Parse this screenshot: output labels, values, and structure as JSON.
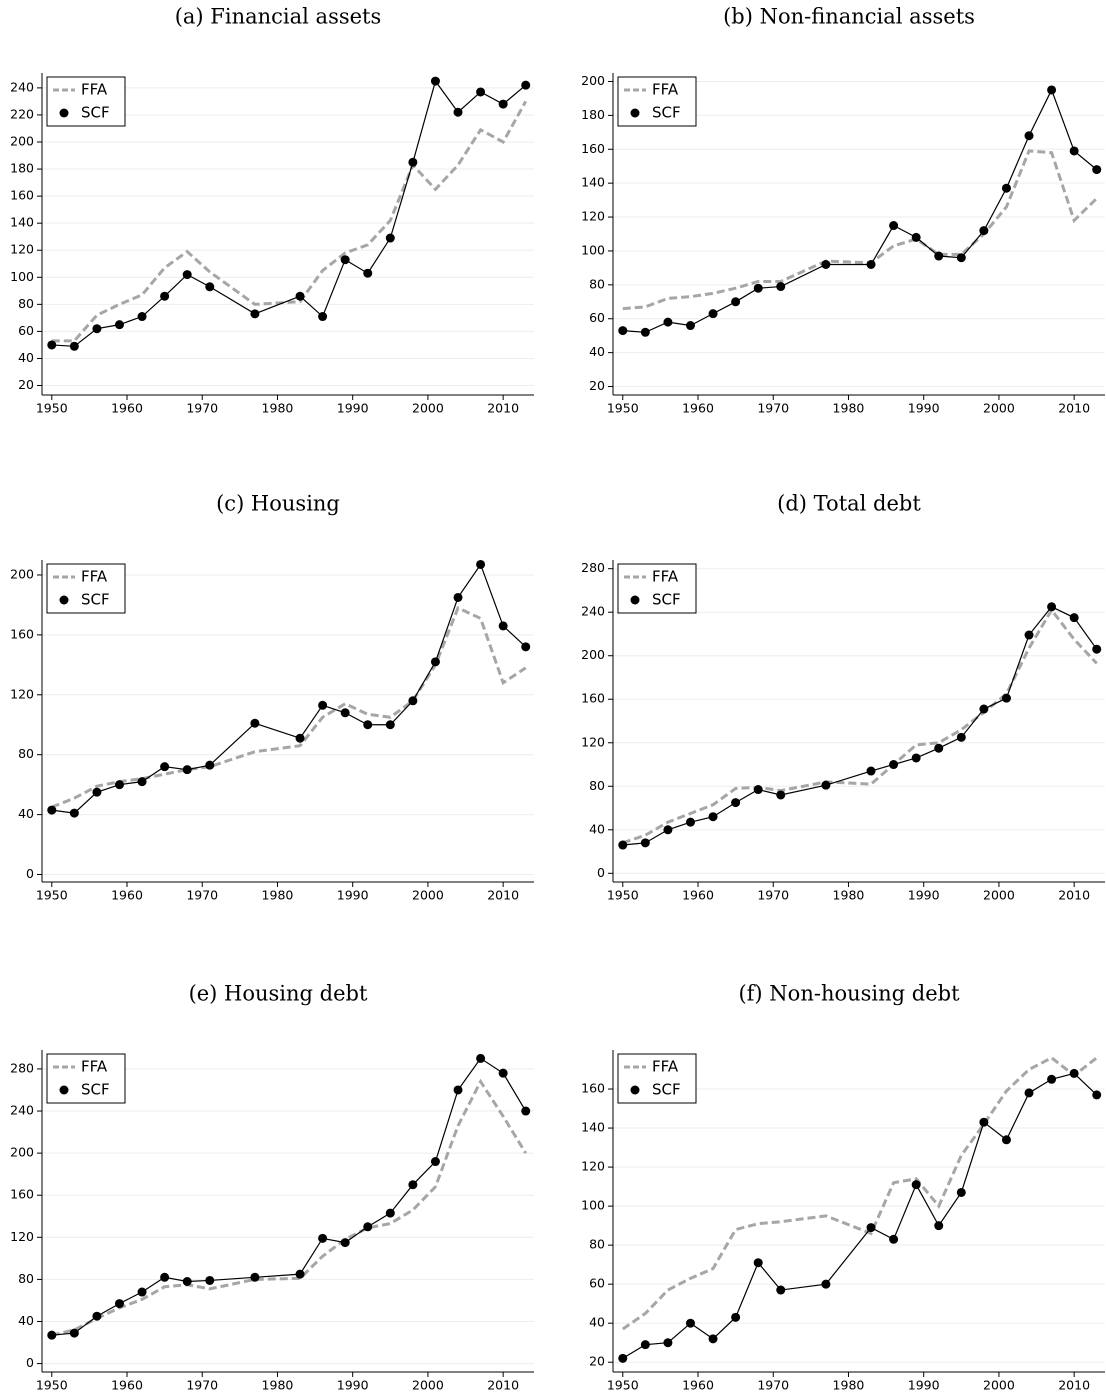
{
  "chart_data": [
    {
      "type": "line",
      "title": "(a) Financial assets",
      "x": [
        1950,
        1953,
        1956,
        1959,
        1962,
        1965,
        1968,
        1971,
        1977,
        1983,
        1986,
        1989,
        1992,
        1995,
        1998,
        2001,
        2004,
        2007,
        2010,
        2013
      ],
      "series": [
        {
          "name": "FFA",
          "color": "#a6a6a6",
          "style": "dashed",
          "markers": false,
          "values": [
            53,
            53,
            72,
            80,
            87,
            107,
            119,
            104,
            80,
            82,
            105,
            118,
            124,
            142,
            183,
            165,
            183,
            209,
            200,
            230
          ]
        },
        {
          "name": "SCF",
          "color": "#000000",
          "style": "solid",
          "markers": true,
          "values": [
            50,
            49,
            62,
            65,
            71,
            86,
            102,
            93,
            73,
            86,
            71,
            113,
            103,
            129,
            185,
            245,
            222,
            237,
            228,
            242
          ]
        }
      ],
      "xlim": [
        1948.7,
        2014.1
      ],
      "ylim": [
        13,
        251
      ],
      "xticks": [
        1950,
        1960,
        1970,
        1980,
        1990,
        2000,
        2010
      ],
      "yticks": [
        20,
        40,
        60,
        80,
        100,
        120,
        140,
        160,
        180,
        200,
        220,
        240
      ],
      "grid": true,
      "legend": "upper left"
    },
    {
      "type": "line",
      "title": "(b) Non-financial assets",
      "x": [
        1950,
        1953,
        1956,
        1959,
        1962,
        1965,
        1968,
        1971,
        1977,
        1983,
        1986,
        1989,
        1992,
        1995,
        1998,
        2001,
        2004,
        2007,
        2010,
        2013
      ],
      "series": [
        {
          "name": "FFA",
          "color": "#a6a6a6",
          "style": "dashed",
          "markers": false,
          "values": [
            66,
            67,
            72,
            73,
            75,
            78,
            82,
            82,
            94,
            93,
            103,
            107,
            98,
            98,
            110,
            126,
            159,
            158,
            118,
            131
          ]
        },
        {
          "name": "SCF",
          "color": "#000000",
          "style": "solid",
          "markers": true,
          "values": [
            53,
            52,
            58,
            56,
            63,
            70,
            78,
            79,
            92,
            92,
            115,
            108,
            97,
            96,
            112,
            137,
            168,
            195,
            159,
            148
          ]
        }
      ],
      "xlim": [
        1948.7,
        2014.1
      ],
      "ylim": [
        15,
        205
      ],
      "xticks": [
        1950,
        1960,
        1970,
        1980,
        1990,
        2000,
        2010
      ],
      "yticks": [
        20,
        40,
        60,
        80,
        100,
        120,
        140,
        160,
        180,
        200
      ],
      "grid": true,
      "legend": "upper left"
    },
    {
      "type": "line",
      "title": "(c) Housing",
      "x": [
        1950,
        1953,
        1956,
        1959,
        1962,
        1965,
        1968,
        1971,
        1977,
        1983,
        1986,
        1989,
        1992,
        1995,
        1998,
        2001,
        2004,
        2007,
        2010,
        2013
      ],
      "series": [
        {
          "name": "FFA",
          "color": "#a6a6a6",
          "style": "dashed",
          "markers": false,
          "values": [
            45,
            51,
            59,
            62,
            64,
            67,
            70,
            72,
            82,
            86,
            105,
            114,
            107,
            105,
            116,
            140,
            178,
            171,
            128,
            138
          ]
        },
        {
          "name": "SCF",
          "color": "#000000",
          "style": "solid",
          "markers": true,
          "values": [
            43,
            41,
            55,
            60,
            62,
            72,
            70,
            73,
            101,
            91,
            113,
            108,
            100,
            100,
            116,
            142,
            185,
            207,
            166,
            152
          ]
        }
      ],
      "xlim": [
        1948.7,
        2014.1
      ],
      "ylim": [
        -5,
        210
      ],
      "xticks": [
        1950,
        1960,
        1970,
        1980,
        1990,
        2000,
        2010
      ],
      "yticks": [
        0,
        40,
        80,
        120,
        160,
        200
      ],
      "grid": true,
      "legend": "upper left"
    },
    {
      "type": "line",
      "title": "(d) Total debt",
      "x": [
        1950,
        1953,
        1956,
        1959,
        1962,
        1965,
        1968,
        1971,
        1977,
        1983,
        1986,
        1989,
        1992,
        1995,
        1998,
        2001,
        2004,
        2007,
        2010,
        2013
      ],
      "series": [
        {
          "name": "FFA",
          "color": "#a6a6a6",
          "style": "dashed",
          "markers": false,
          "values": [
            28,
            35,
            47,
            55,
            63,
            78,
            79,
            76,
            84,
            82,
            100,
            118,
            120,
            132,
            148,
            165,
            207,
            242,
            215,
            193
          ]
        },
        {
          "name": "SCF",
          "color": "#000000",
          "style": "solid",
          "markers": true,
          "values": [
            26,
            28,
            40,
            47,
            52,
            65,
            77,
            72,
            81,
            94,
            100,
            106,
            115,
            125,
            151,
            161,
            219,
            245,
            235,
            206
          ]
        }
      ],
      "xlim": [
        1948.7,
        2014.1
      ],
      "ylim": [
        -8,
        288
      ],
      "xticks": [
        1950,
        1960,
        1970,
        1980,
        1990,
        2000,
        2010
      ],
      "yticks": [
        0,
        40,
        80,
        120,
        160,
        200,
        240,
        280
      ],
      "grid": true,
      "legend": "upper left"
    },
    {
      "type": "line",
      "title": "(e) Housing debt",
      "x": [
        1950,
        1953,
        1956,
        1959,
        1962,
        1965,
        1968,
        1971,
        1977,
        1983,
        1986,
        1989,
        1992,
        1995,
        1998,
        2001,
        2004,
        2007,
        2010,
        2013
      ],
      "series": [
        {
          "name": "FFA",
          "color": "#a6a6a6",
          "style": "dashed",
          "markers": false,
          "values": [
            27,
            32,
            43,
            53,
            61,
            73,
            75,
            71,
            80,
            81,
            102,
            118,
            129,
            133,
            146,
            168,
            226,
            268,
            235,
            200
          ]
        },
        {
          "name": "SCF",
          "color": "#000000",
          "style": "solid",
          "markers": true,
          "values": [
            27,
            29,
            45,
            57,
            68,
            82,
            78,
            79,
            82,
            85,
            119,
            115,
            130,
            143,
            170,
            192,
            260,
            290,
            276,
            240
          ]
        }
      ],
      "xlim": [
        1948.7,
        2014.1
      ],
      "ylim": [
        -8,
        298
      ],
      "xticks": [
        1950,
        1960,
        1970,
        1980,
        1990,
        2000,
        2010
      ],
      "yticks": [
        0,
        40,
        80,
        120,
        160,
        200,
        240,
        280
      ],
      "grid": true,
      "legend": "upper left"
    },
    {
      "type": "line",
      "title": "(f) Non-housing debt",
      "x": [
        1950,
        1953,
        1956,
        1959,
        1962,
        1965,
        1968,
        1971,
        1977,
        1983,
        1986,
        1989,
        1992,
        1995,
        1998,
        2001,
        2004,
        2007,
        2010,
        2013
      ],
      "series": [
        {
          "name": "FFA",
          "color": "#a6a6a6",
          "style": "dashed",
          "markers": false,
          "values": [
            37,
            45,
            57,
            63,
            68,
            88,
            91,
            92,
            95,
            86,
            112,
            114,
            100,
            126,
            142,
            159,
            170,
            176,
            167,
            176
          ]
        },
        {
          "name": "SCF",
          "color": "#000000",
          "style": "solid",
          "markers": true,
          "values": [
            22,
            29,
            30,
            40,
            32,
            43,
            71,
            57,
            60,
            89,
            83,
            111,
            90,
            107,
            143,
            134,
            158,
            165,
            168,
            157
          ]
        }
      ],
      "xlim": [
        1948.7,
        2014.1
      ],
      "ylim": [
        15,
        180
      ],
      "xticks": [
        1950,
        1960,
        1970,
        1980,
        1990,
        2000,
        2010
      ],
      "yticks": [
        20,
        40,
        60,
        80,
        100,
        120,
        140,
        160
      ],
      "grid": true,
      "legend": "upper left"
    }
  ]
}
